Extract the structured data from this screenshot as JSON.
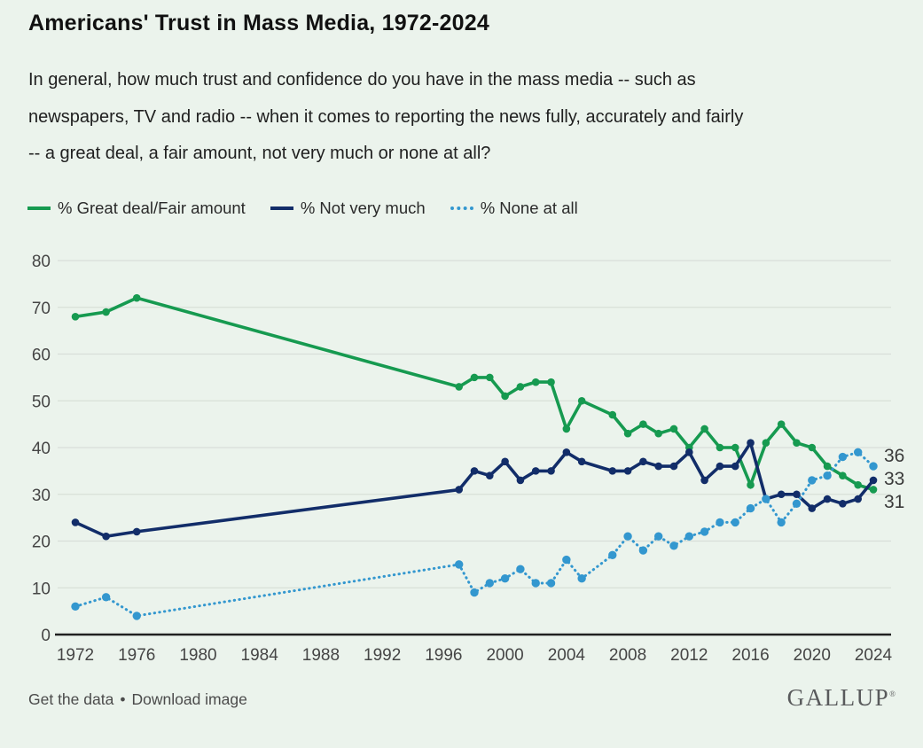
{
  "page": {
    "title": "Americans' Trust in Mass Media, 1972-2024",
    "subtitle_lines": [
      "In general, how much trust and confidence do you have in the mass media -- such as",
      "newspapers, TV and radio -- when it comes to reporting the news fully, accurately and fairly",
      "-- a great deal, a fair amount, not very much or none at all?"
    ]
  },
  "colors": {
    "background": "#ebf3ec",
    "green": "#169a50",
    "navy": "#122d69",
    "blue": "#3397cf",
    "grid": "#d8dfd8",
    "axis": "#202020",
    "tick_text": "#454545",
    "end_label_text": "#3a3a3a"
  },
  "legend": {
    "items": [
      {
        "label": "% Great deal/Fair amount",
        "color": "#169a50",
        "style": "solid"
      },
      {
        "label": "% Not very much",
        "color": "#122d69",
        "style": "solid"
      },
      {
        "label": "% None at all",
        "color": "#3397cf",
        "style": "dotted"
      }
    ]
  },
  "chart_data": {
    "type": "line",
    "title": "Americans' Trust in Mass Media, 1972-2024",
    "xlabel": "",
    "ylabel": "",
    "ylim": [
      0,
      80
    ],
    "y_ticks": [
      0,
      10,
      20,
      30,
      40,
      50,
      60,
      70,
      80
    ],
    "xlim": [
      1971,
      2025.5
    ],
    "x_tick_labels": [
      1972,
      1976,
      1980,
      1984,
      1988,
      1992,
      1996,
      2000,
      2004,
      2008,
      2012,
      2016,
      2020,
      2024
    ],
    "grid": "horizontal",
    "legend_position": "top",
    "x": [
      1972,
      1974,
      1976,
      1997,
      1998,
      1999,
      2000,
      2001,
      2002,
      2003,
      2004,
      2005,
      2007,
      2008,
      2009,
      2010,
      2011,
      2012,
      2013,
      2014,
      2015,
      2016,
      2017,
      2018,
      2019,
      2020,
      2021,
      2022,
      2023,
      2024
    ],
    "series": [
      {
        "name": "% Great deal/Fair amount",
        "color": "#169a50",
        "style": "solid",
        "values": [
          68,
          69,
          72,
          53,
          55,
          55,
          51,
          53,
          54,
          54,
          44,
          50,
          47,
          43,
          45,
          43,
          44,
          40,
          44,
          40,
          40,
          32,
          41,
          45,
          41,
          40,
          36,
          34,
          32,
          31
        ]
      },
      {
        "name": "% Not very much",
        "color": "#122d69",
        "style": "solid",
        "values": [
          24,
          21,
          22,
          31,
          35,
          34,
          37,
          33,
          35,
          35,
          39,
          37,
          35,
          35,
          37,
          36,
          36,
          39,
          33,
          36,
          36,
          41,
          29,
          30,
          30,
          27,
          29,
          28,
          29,
          33
        ]
      },
      {
        "name": "% None at all",
        "color": "#3397cf",
        "style": "dotted",
        "values": [
          6,
          8,
          4,
          15,
          9,
          11,
          12,
          14,
          11,
          11,
          16,
          12,
          17,
          21,
          18,
          21,
          19,
          21,
          22,
          24,
          24,
          27,
          29,
          24,
          28,
          33,
          34,
          38,
          39,
          36
        ]
      }
    ],
    "end_labels": [
      {
        "series": "% None at all",
        "text": "36"
      },
      {
        "series": "% Not very much",
        "text": "33"
      },
      {
        "series": "% Great deal/Fair amount",
        "text": "31"
      }
    ]
  },
  "footer": {
    "link1": "Get the data",
    "separator": "•",
    "link2": "Download image",
    "logo": "GALLUP",
    "logo_mark": "®"
  }
}
